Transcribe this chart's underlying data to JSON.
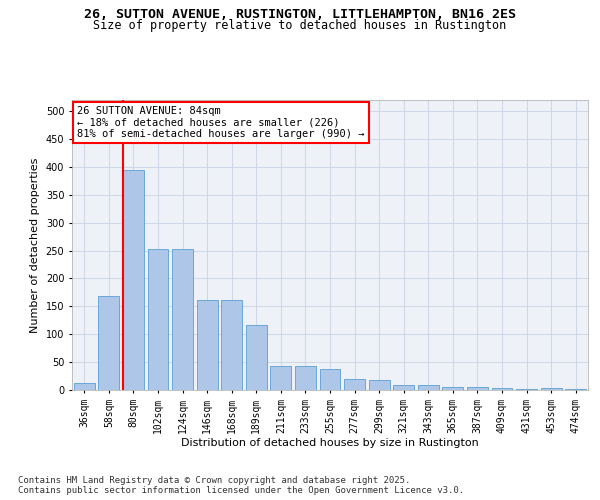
{
  "title_line1": "26, SUTTON AVENUE, RUSTINGTON, LITTLEHAMPTON, BN16 2ES",
  "title_line2": "Size of property relative to detached houses in Rustington",
  "xlabel": "Distribution of detached houses by size in Rustington",
  "ylabel": "Number of detached properties",
  "categories": [
    "36sqm",
    "58sqm",
    "80sqm",
    "102sqm",
    "124sqm",
    "146sqm",
    "168sqm",
    "189sqm",
    "211sqm",
    "233sqm",
    "255sqm",
    "277sqm",
    "299sqm",
    "321sqm",
    "343sqm",
    "365sqm",
    "387sqm",
    "409sqm",
    "431sqm",
    "453sqm",
    "474sqm"
  ],
  "values": [
    12,
    168,
    395,
    253,
    253,
    161,
    161,
    116,
    43,
    43,
    37,
    19,
    18,
    9,
    9,
    6,
    5,
    4,
    1,
    3,
    1
  ],
  "bar_color": "#aec6e8",
  "bar_edge_color": "#5a9fd4",
  "grid_color": "#d0d8e8",
  "background_color": "#eef2f8",
  "vline_color": "red",
  "annotation_text": "26 SUTTON AVENUE: 84sqm\n← 18% of detached houses are smaller (226)\n81% of semi-detached houses are larger (990) →",
  "annotation_box_color": "white",
  "annotation_box_edge": "red",
  "ylim": [
    0,
    520
  ],
  "yticks": [
    0,
    50,
    100,
    150,
    200,
    250,
    300,
    350,
    400,
    450,
    500
  ],
  "footer_line1": "Contains HM Land Registry data © Crown copyright and database right 2025.",
  "footer_line2": "Contains public sector information licensed under the Open Government Licence v3.0.",
  "title_fontsize": 9.5,
  "subtitle_fontsize": 8.5,
  "axis_label_fontsize": 8,
  "tick_fontsize": 7,
  "annotation_fontsize": 7.5,
  "footer_fontsize": 6.5
}
